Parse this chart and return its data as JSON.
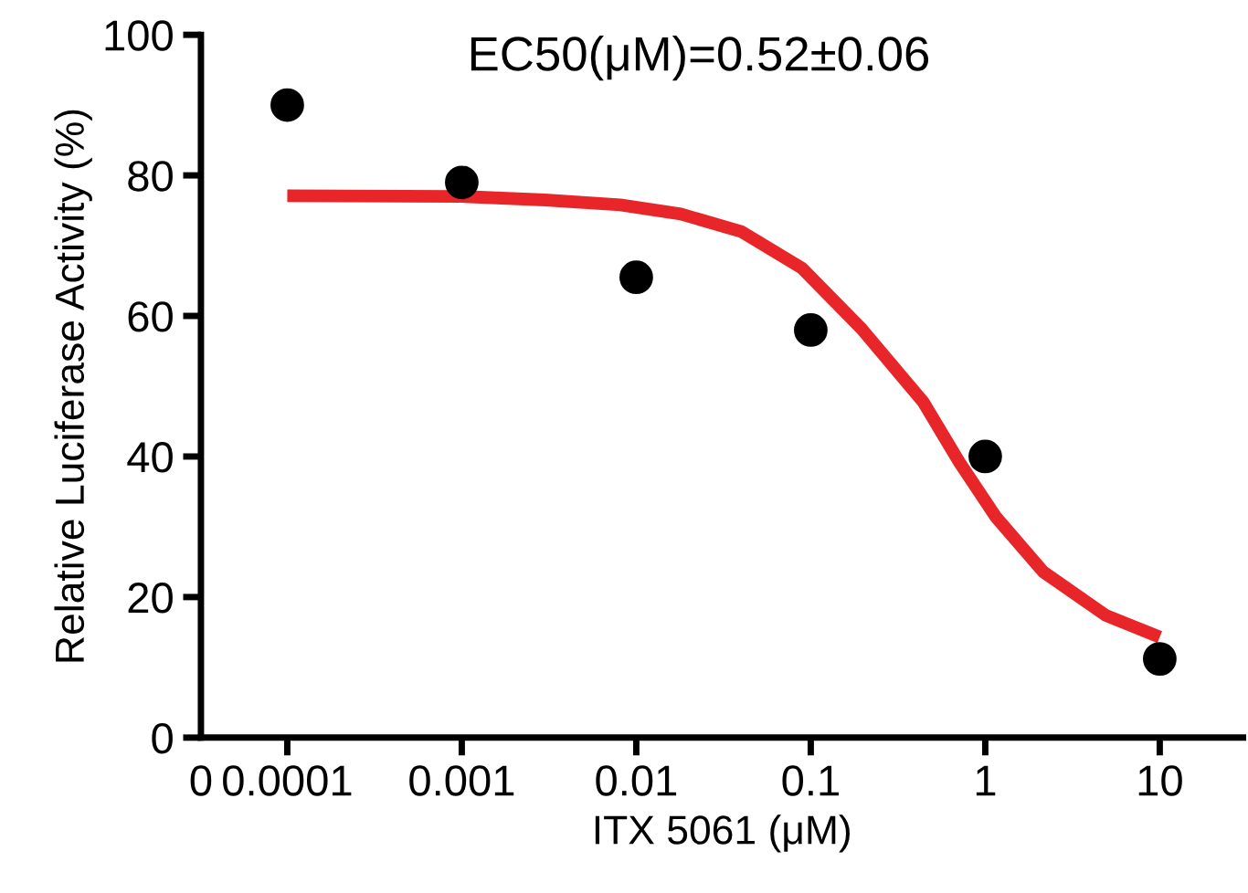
{
  "chart_data": {
    "type": "scatter",
    "xlabel": "ITX 5061 (μM)",
    "ylabel": "Relative Luciferase Activity (%)",
    "annotations": [
      "EC50(μM)=0.52±0.06"
    ],
    "log": "x",
    "xlim": [
      3.2e-05,
      30
    ],
    "xticks": [
      {
        "value": 3.2e-05,
        "label": "0"
      },
      0.0001,
      0.001,
      0.01,
      0.1,
      1,
      10
    ],
    "ylim": [
      0,
      100
    ],
    "yticks": [
      0,
      20,
      40,
      60,
      80,
      100
    ],
    "grid": false,
    "legend": false,
    "marker": "circle",
    "series": [
      {
        "color": "#000000",
        "x": [
          0.0001,
          0.001,
          0.01,
          0.1,
          1,
          10
        ],
        "values": [
          90,
          79,
          65.5,
          58,
          40,
          11.2
        ]
      },
      {
        "type": "line",
        "color": "#e8262a",
        "line_style": "solid",
        "marker": "none",
        "x": [
          0.0001,
          0.001,
          0.003,
          0.0081,
          0.018,
          0.04,
          0.089,
          0.195,
          0.44,
          0.71,
          1.15,
          2.15,
          4.9,
          10
        ],
        "values": [
          77.1,
          77,
          76.5,
          75.8,
          74.5,
          72,
          66.8,
          58.2,
          47.8,
          39.2,
          31.4,
          23.6,
          17.4,
          14.3
        ]
      }
    ]
  }
}
